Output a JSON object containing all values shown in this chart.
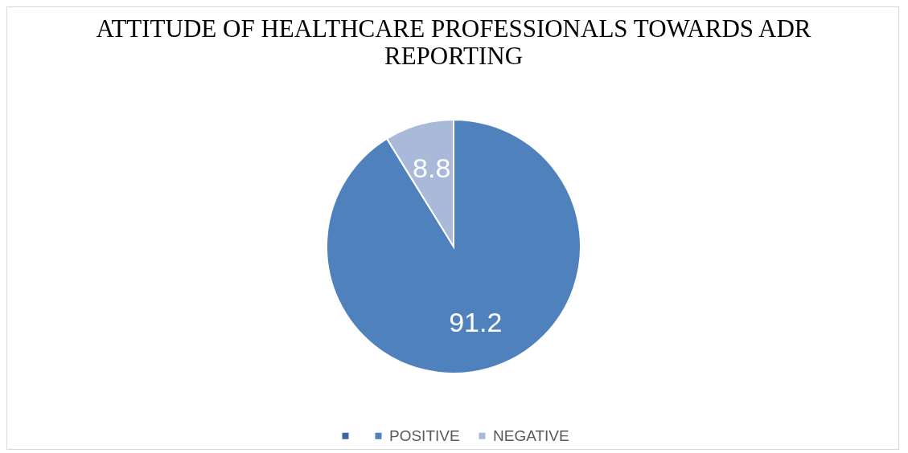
{
  "chart_data": {
    "type": "pie",
    "title": "ATTITUDE OF HEALTHCARE PROFESSIONALS TOWARDS ADR REPORTING",
    "categories": [
      null,
      "POSITIVE",
      "NEGATIVE"
    ],
    "values": [
      0,
      91.2,
      8.8
    ],
    "colors": [
      "#3a65a6",
      "#4f81bd",
      "#a9b9d9"
    ],
    "data_labels": true,
    "legend": "bottom"
  }
}
